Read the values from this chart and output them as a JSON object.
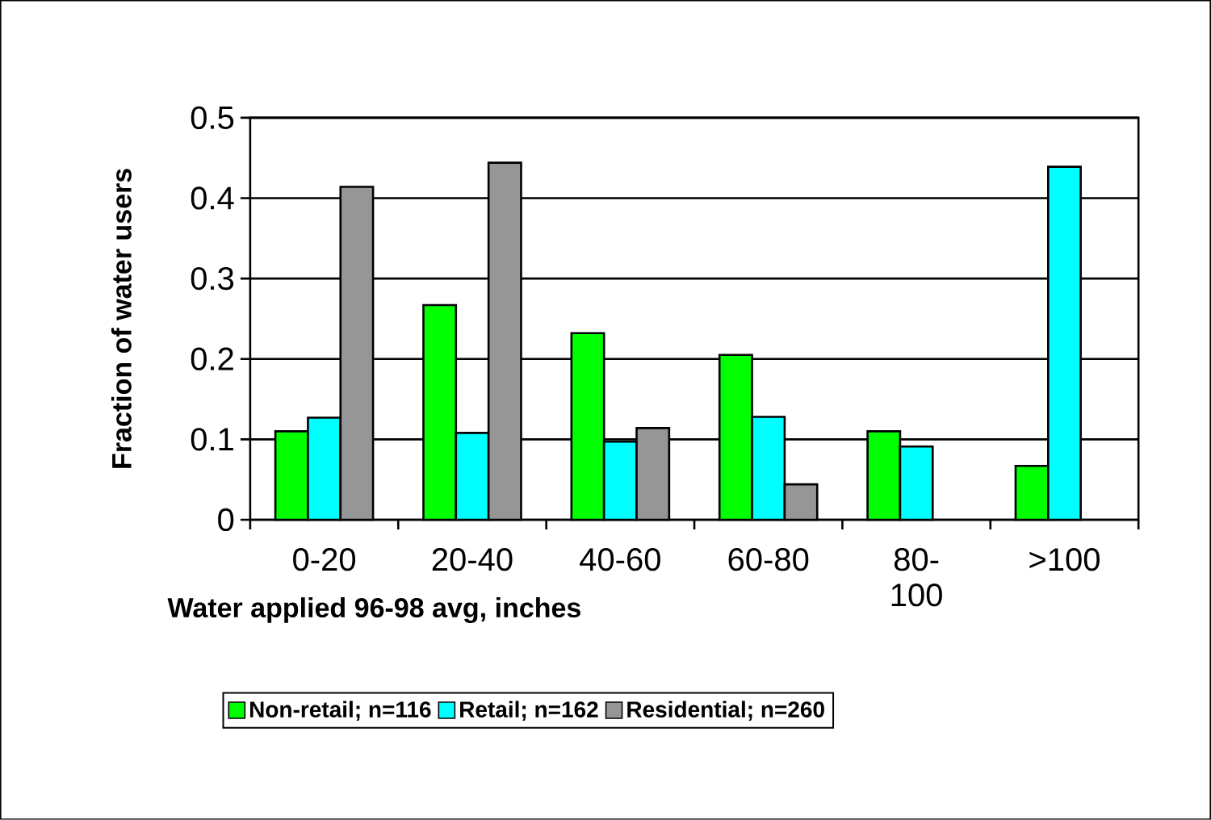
{
  "chart_data": {
    "type": "bar",
    "xlabel": "Water applied 96-98 avg, inches",
    "ylabel": "Fraction of water users",
    "categories": [
      "0-20",
      "20-40",
      "40-60",
      "60-80",
      "80-100",
      ">100"
    ],
    "series": [
      {
        "name": "Non-retail; n=116",
        "color": "#00ff00",
        "values": [
          0.11,
          0.267,
          0.232,
          0.205,
          0.11,
          0.067
        ]
      },
      {
        "name": "Retail; n=162",
        "color": "#00ffff",
        "values": [
          0.127,
          0.108,
          0.097,
          0.128,
          0.091,
          0.439
        ]
      },
      {
        "name": "Residential; n=260",
        "color": "#969696",
        "values": [
          0.414,
          0.444,
          0.114,
          0.044,
          null,
          null
        ]
      }
    ],
    "ylim": [
      0,
      0.5
    ],
    "yticks": [
      0,
      0.1,
      0.2,
      0.3,
      0.4,
      0.5
    ],
    "grid": "y",
    "legend": "bottom"
  }
}
